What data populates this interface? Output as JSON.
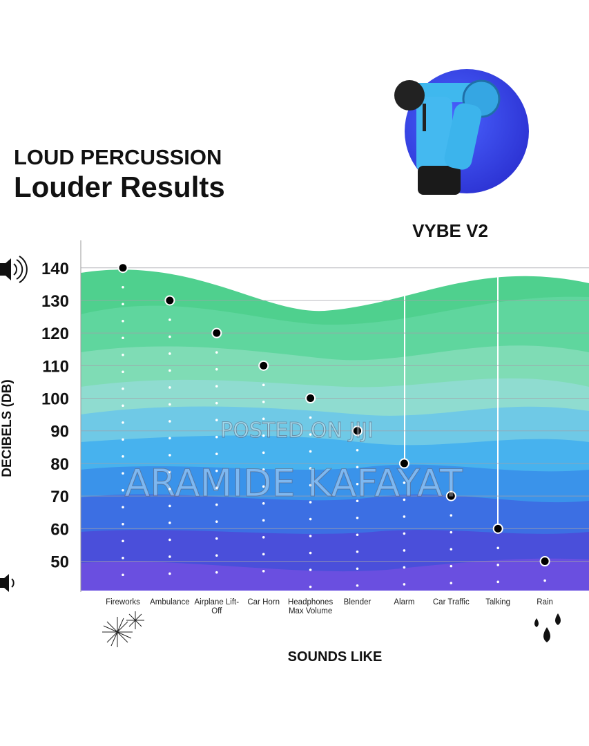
{
  "header": {
    "line1": "LOUD PERCUSSION",
    "line2": "Louder Results",
    "product": "VYBE V2"
  },
  "watermarks": [
    "POSTED ON JIJI",
    "ARAMIDE KAFAYAT"
  ],
  "chart_data": {
    "type": "scatter",
    "y_label": "DECIBELS (DB)",
    "x_label": "SOUNDS LIKE",
    "categories": [
      "Fireworks",
      "Ambulance",
      "Airplane Lift-Off",
      "Car Horn",
      "Headphones Max Volume",
      "Blender",
      "Alarm",
      "Car Traffic",
      "Talking",
      "Rain"
    ],
    "values": [
      140,
      130,
      120,
      110,
      100,
      90,
      80,
      70,
      60,
      50
    ],
    "color": "#000000",
    "ylim": [
      41,
      148
    ],
    "yticks": [
      50,
      60,
      70,
      80,
      90,
      100,
      110,
      120,
      130,
      140
    ],
    "grid": true
  }
}
